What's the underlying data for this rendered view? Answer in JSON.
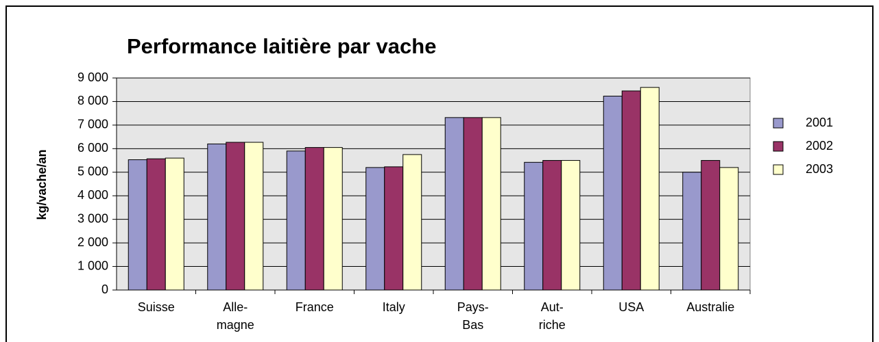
{
  "chart_data": {
    "type": "bar",
    "title": "Performance laitière par vache",
    "y_label": "kg/vache/an",
    "categories": [
      "Suisse",
      "Alle-\nmagne",
      "France",
      "Italy",
      "Pays-\nBas",
      "Aut-\nriche",
      "USA",
      "Australie"
    ],
    "series": [
      {
        "name": "2001",
        "color": "#9999cc",
        "values": [
          5530,
          6200,
          5900,
          5200,
          7320,
          5420,
          8230,
          5000
        ]
      },
      {
        "name": "2002",
        "color": "#993366",
        "values": [
          5570,
          6270,
          6050,
          5230,
          7320,
          5500,
          8450,
          5500
        ]
      },
      {
        "name": "2003",
        "color": "#ffffcc",
        "values": [
          5600,
          6270,
          6050,
          5750,
          7320,
          5500,
          8600,
          5200
        ]
      }
    ],
    "ylim": [
      0,
      9000
    ],
    "yticks": [
      0,
      {
        "value": 1000,
        "label": "1 000"
      },
      {
        "value": 2000,
        "label": "2 000"
      },
      {
        "value": 3000,
        "label": "3 000"
      },
      {
        "value": 4000,
        "label": "4 000"
      },
      {
        "value": 5000,
        "label": "5 000"
      },
      {
        "value": 6000,
        "label": "6 000"
      },
      {
        "value": 7000,
        "label": "7 000"
      },
      {
        "value": 8000,
        "label": "8 000"
      },
      {
        "value": 9000,
        "label": "9 000"
      }
    ],
    "grid": true,
    "legend": "right"
  }
}
